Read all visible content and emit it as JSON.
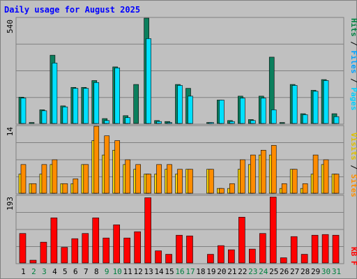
{
  "title": "Daily usage for August 2025",
  "colors": {
    "background": "#c0c0c0",
    "title": "#0000ff",
    "hits": "#0b7f5d",
    "files": "#00e0ff",
    "pages": "#00e0ff",
    "visits": "#f4d20a",
    "sites": "#ff8c00",
    "kbf": "#ff0000",
    "weekend_label": "#008040",
    "weekday_label": "#000000"
  },
  "panels": {
    "top": {
      "ymax_label": "540",
      "legend": [
        {
          "text": "Pages",
          "color": "#00d0ff"
        },
        {
          "text": " / ",
          "color": "#000000"
        },
        {
          "text": "Files",
          "color": "#00a0ff"
        },
        {
          "text": " / ",
          "color": "#000000"
        },
        {
          "text": "Hits",
          "color": "#008040"
        }
      ]
    },
    "middle": {
      "ymax_label": "14",
      "legend": [
        {
          "text": "Sites",
          "color": "#ff8c00"
        },
        {
          "text": " / ",
          "color": "#000000"
        },
        {
          "text": "Visits",
          "color": "#e0c000"
        }
      ]
    },
    "bottom": {
      "ymax_label": "193",
      "legend": [
        {
          "text": "KB F",
          "color": "#ff0000"
        }
      ]
    }
  },
  "chart_data": [
    {
      "type": "bar",
      "title": "Daily usage for August 2025",
      "categories": [
        "1",
        "2",
        "3",
        "4",
        "5",
        "6",
        "7",
        "8",
        "9",
        "10",
        "11",
        "12",
        "13",
        "14",
        "15",
        "16",
        "17",
        "18",
        "19",
        "20",
        "21",
        "22",
        "23",
        "24",
        "25",
        "26",
        "27",
        "28",
        "29",
        "30",
        "31"
      ],
      "ylim": [
        0,
        540
      ],
      "series": [
        {
          "name": "Hits",
          "values": [
            135,
            5,
            70,
            350,
            90,
            185,
            185,
            220,
            25,
            290,
            40,
            200,
            540,
            15,
            10,
            200,
            180,
            0,
            5,
            120,
            15,
            140,
            20,
            140,
            340,
            5,
            200,
            50,
            170,
            225,
            50
          ]
        },
        {
          "name": "Files",
          "values": [
            130,
            0,
            65,
            310,
            85,
            180,
            180,
            210,
            15,
            285,
            30,
            0,
            435,
            10,
            5,
            195,
            140,
            0,
            5,
            120,
            10,
            130,
            15,
            130,
            70,
            0,
            195,
            45,
            165,
            220,
            35
          ]
        },
        {
          "name": "Pages",
          "values": [
            0,
            0,
            0,
            0,
            0,
            0,
            0,
            0,
            0,
            0,
            0,
            0,
            0,
            0,
            0,
            0,
            0,
            0,
            0,
            0,
            0,
            0,
            0,
            0,
            0,
            0,
            0,
            0,
            0,
            0,
            0
          ]
        }
      ]
    },
    {
      "type": "bar",
      "categories": [
        "1",
        "2",
        "3",
        "4",
        "5",
        "6",
        "7",
        "8",
        "9",
        "10",
        "11",
        "12",
        "13",
        "14",
        "15",
        "16",
        "17",
        "18",
        "19",
        "20",
        "21",
        "22",
        "23",
        "24",
        "25",
        "26",
        "27",
        "28",
        "29",
        "30",
        "31"
      ],
      "ylim": [
        0,
        14
      ],
      "series": [
        {
          "name": "Visits",
          "values": [
            4,
            2,
            4,
            6,
            2,
            2,
            6,
            11,
            8,
            9,
            6,
            5,
            4,
            4,
            5,
            4,
            5,
            0,
            5,
            1,
            1,
            5,
            6,
            8,
            8,
            1,
            5,
            1,
            4,
            6,
            4
          ]
        },
        {
          "name": "Sites",
          "values": [
            6,
            2,
            6,
            7,
            2,
            3,
            6,
            14,
            12,
            11,
            7,
            6,
            4,
            6,
            6,
            5,
            5,
            0,
            5,
            1,
            2,
            7,
            8,
            9,
            10,
            2,
            5,
            2,
            8,
            7,
            4
          ]
        }
      ]
    },
    {
      "type": "bar",
      "categories": [
        "1",
        "2",
        "3",
        "4",
        "5",
        "6",
        "7",
        "8",
        "9",
        "10",
        "11",
        "12",
        "13",
        "14",
        "15",
        "16",
        "17",
        "18",
        "19",
        "20",
        "21",
        "22",
        "23",
        "24",
        "25",
        "26",
        "27",
        "28",
        "29",
        "30",
        "31"
      ],
      "ylim": [
        0,
        193
      ],
      "series": [
        {
          "name": "KB F",
          "values": [
            85,
            8,
            60,
            130,
            45,
            70,
            85,
            130,
            72,
            110,
            72,
            90,
            188,
            35,
            25,
            80,
            78,
            0,
            25,
            50,
            38,
            132,
            40,
            85,
            190,
            15,
            76,
            25,
            80,
            82,
            80
          ]
        }
      ]
    }
  ],
  "x_labels": {
    "weekend_days": [
      "2",
      "3",
      "9",
      "10",
      "16",
      "17",
      "23",
      "24",
      "30",
      "31"
    ]
  }
}
